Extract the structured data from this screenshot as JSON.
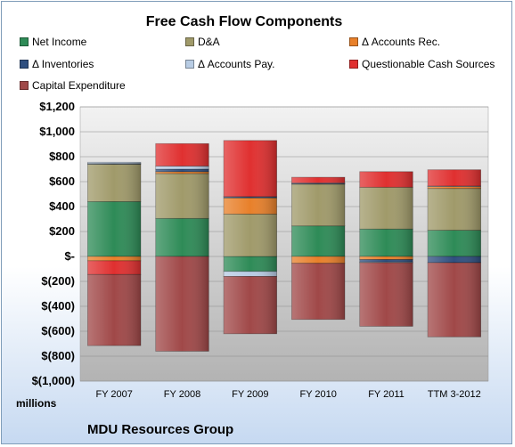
{
  "chart_data": {
    "type": "bar",
    "stacked": true,
    "title": "Free Cash Flow Components",
    "units_label": "millions",
    "company": "MDU Resources Group",
    "categories": [
      "FY 2007",
      "FY 2008",
      "FY 2009",
      "FY 2010",
      "FY 2011",
      "TTM 3-2012"
    ],
    "ylim": [
      -1000,
      1200
    ],
    "yticks": [
      -1000,
      -800,
      -600,
      -400,
      -200,
      0,
      200,
      400,
      600,
      800,
      1000,
      1200
    ],
    "ytick_labels": [
      "$(1,000)",
      "$(800)",
      "$(600)",
      "$(400)",
      "$(200)",
      "$-",
      "$200",
      "$400",
      "$600",
      "$800",
      "$1,000",
      "$1,200"
    ],
    "grid": true,
    "legend_position": "top",
    "series": [
      {
        "name": "Net Income",
        "color": "#2e8b57",
        "values": [
          440,
          305,
          -120,
          245,
          220,
          210
        ]
      },
      {
        "name": "D&A",
        "color": "#a09a6a",
        "values": [
          300,
          360,
          340,
          335,
          335,
          335
        ]
      },
      {
        "name": "Δ Accounts Rec.",
        "color": "#e8802a",
        "values": [
          -35,
          15,
          130,
          -55,
          -25,
          15
        ]
      },
      {
        "name": "Δ Inventories",
        "color": "#2f4f7f",
        "values": [
          5,
          20,
          10,
          5,
          -20,
          -50
        ]
      },
      {
        "name": "Δ Accounts Pay.",
        "color": "#b8cce4",
        "values": [
          10,
          25,
          -40,
          5,
          -5,
          5
        ]
      },
      {
        "name": "Questionable Cash Sources",
        "color": "#e03030",
        "values": [
          -110,
          180,
          450,
          45,
          125,
          130
        ]
      },
      {
        "name": "Capital Expenditure",
        "color": "#a04848",
        "values": [
          -570,
          -760,
          -460,
          -450,
          -510,
          -595
        ]
      }
    ]
  }
}
